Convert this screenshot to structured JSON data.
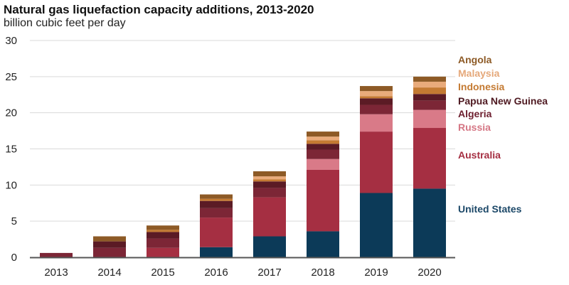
{
  "chart_data": {
    "type": "bar",
    "stacked": true,
    "title": "Natural gas liquefaction capacity additions, 2013-2020",
    "subtitle": "billion cubic feet per day",
    "xlabel": "",
    "ylabel": "billion cubic feet per day",
    "ylim": [
      0,
      30
    ],
    "yticks": [
      0,
      5,
      10,
      15,
      20,
      25,
      30
    ],
    "grid": true,
    "legend_placement": "right",
    "categories": [
      "2013",
      "2014",
      "2015",
      "2016",
      "2017",
      "2018",
      "2019",
      "2020"
    ],
    "series": [
      {
        "name": "United States",
        "color": "#0c3a58",
        "values": [
          0,
          0,
          0,
          1.4,
          2.9,
          3.6,
          8.9,
          9.5
        ]
      },
      {
        "name": "Australia",
        "color": "#a52f42",
        "values": [
          0,
          0,
          1.3,
          4.1,
          5.4,
          8.5,
          8.5,
          8.4
        ]
      },
      {
        "name": "Russia",
        "color": "#d97a88",
        "values": [
          0,
          0,
          0,
          0,
          0,
          1.5,
          2.4,
          2.5
        ]
      },
      {
        "name": "Algeria",
        "color": "#7c2636",
        "values": [
          0.6,
          1.3,
          1.3,
          1.3,
          1.3,
          1.3,
          1.3,
          1.3
        ]
      },
      {
        "name": "Papua New Guinea",
        "color": "#5b1b25",
        "values": [
          0,
          0.9,
          0.9,
          1.0,
          0.9,
          0.8,
          0.9,
          0.9
        ]
      },
      {
        "name": "Indonesia",
        "color": "#c47a32",
        "values": [
          0,
          0,
          0.3,
          0.3,
          0.3,
          0.5,
          0.3,
          0.9
        ]
      },
      {
        "name": "Malaysia",
        "color": "#e9ab7b",
        "values": [
          0,
          0,
          0,
          0,
          0.4,
          0.5,
          0.7,
          0.8
        ]
      },
      {
        "name": "Angola",
        "color": "#8d5a26",
        "values": [
          0,
          0.7,
          0.6,
          0.6,
          0.7,
          0.7,
          0.7,
          0.7
        ]
      }
    ],
    "legend_order": [
      "Angola",
      "Malaysia",
      "Indonesia",
      "Papua New Guinea",
      "Algeria",
      "Russia",
      "Australia",
      "United States"
    ]
  }
}
